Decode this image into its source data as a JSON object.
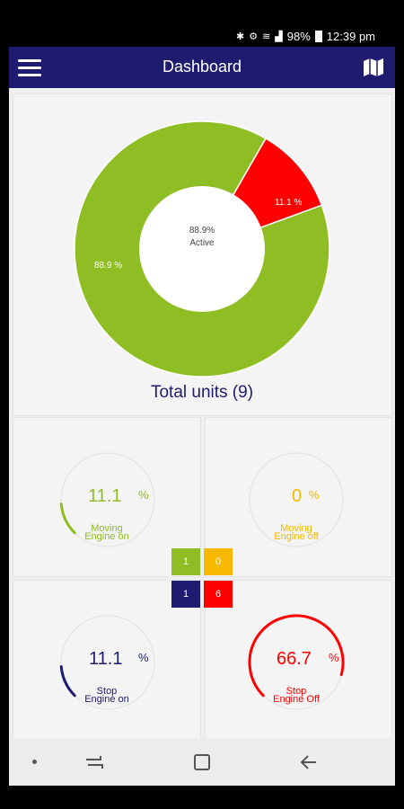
{
  "status": {
    "battery": "98%",
    "time": "12:39 pm"
  },
  "header": {
    "title": "Dashboard",
    "menu_icon": "menu-icon",
    "map_icon": "map-icon"
  },
  "colors": {
    "header": "#1f1b6e",
    "active": "#8fbe24",
    "inactive": "#ff0000",
    "moving_off": "#f6b800",
    "stop_on": "#1f1b6e"
  },
  "donut": {
    "center_value": "88.9%",
    "center_label": "Active",
    "active_label": "88.9 %",
    "inactive_label": "11.1 %",
    "active_fraction": 0.889,
    "inactive_fraction": 0.111
  },
  "total_units": "Total units (9)",
  "gauges": {
    "moving_on": {
      "value": "11.1",
      "pct": "%",
      "line1": "Moving",
      "line2": "Engine on",
      "fraction": 0.111,
      "color": "#8fbe24"
    },
    "moving_off": {
      "value": "0",
      "pct": "%",
      "line1": "Moving",
      "line2": "Engine off",
      "fraction": 0.0,
      "color": "#f6b800"
    },
    "stop_on": {
      "value": "11.1",
      "pct": "%",
      "line1": "Stop",
      "line2": "Engine on",
      "fraction": 0.111,
      "color": "#1f1b6e"
    },
    "stop_off": {
      "value": "66.7",
      "pct": "%",
      "line1": "Stop",
      "line2": "Engine Off",
      "fraction": 0.667,
      "color": "#ff0000"
    }
  },
  "counts": {
    "moving_on": "1",
    "moving_off": "0",
    "stop_on": "1",
    "stop_off": "6"
  }
}
